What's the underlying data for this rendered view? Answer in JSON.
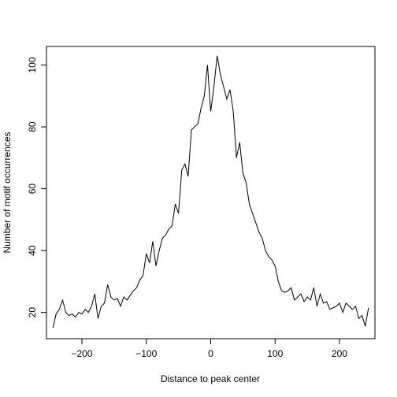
{
  "chart_data": {
    "type": "line",
    "title": "",
    "xlabel": "Distance to peak center",
    "ylabel": "Number of motif occurrences",
    "xlim": [
      -255,
      255
    ],
    "ylim": [
      11.5,
      106
    ],
    "x_ticks": [
      -200,
      -100,
      0,
      100,
      200
    ],
    "y_ticks": [
      20,
      40,
      60,
      80,
      100
    ],
    "x_tick_labels": [
      "−200",
      "−100",
      "0",
      "100",
      "200"
    ],
    "y_tick_labels": [
      "20",
      "40",
      "60",
      "80",
      "100"
    ],
    "grid": false,
    "legend": "none",
    "line_color": "#000000",
    "series": [
      {
        "x": [
          -245,
          -240,
          -235,
          -230,
          -225,
          -220,
          -215,
          -210,
          -205,
          -200,
          -195,
          -190,
          -185,
          -180,
          -175,
          -170,
          -165,
          -160,
          -155,
          -150,
          -145,
          -140,
          -135,
          -130,
          -125,
          -120,
          -115,
          -110,
          -105,
          -100,
          -95,
          -90,
          -85,
          -80,
          -75,
          -70,
          -65,
          -60,
          -55,
          -50,
          -45,
          -40,
          -35,
          -30,
          -25,
          -20,
          -15,
          -10,
          -5,
          0,
          5,
          10,
          15,
          20,
          25,
          30,
          35,
          40,
          45,
          50,
          55,
          60,
          65,
          70,
          75,
          80,
          85,
          90,
          95,
          100,
          105,
          110,
          115,
          120,
          125,
          130,
          135,
          140,
          145,
          150,
          155,
          160,
          165,
          170,
          175,
          180,
          185,
          190,
          195,
          200,
          205,
          210,
          215,
          220,
          225,
          230,
          235,
          240,
          245
        ],
        "y": [
          15,
          19.5,
          21,
          24,
          20,
          19,
          19.5,
          18.5,
          20,
          19.5,
          21,
          20,
          22,
          26,
          18,
          22,
          23,
          29,
          25,
          24,
          24.5,
          22,
          25,
          24,
          25.5,
          27,
          28,
          30.5,
          32,
          39,
          36,
          43,
          35,
          40,
          44,
          45,
          47,
          48,
          55,
          52,
          66,
          68,
          64,
          79,
          80,
          81,
          86,
          90,
          100,
          85,
          93,
          103,
          97,
          93,
          89,
          92,
          85,
          70,
          75,
          65,
          62,
          55,
          52,
          49,
          46,
          44,
          40,
          38,
          37,
          35,
          30,
          27,
          26.5,
          27,
          28,
          24,
          25,
          26,
          23.5,
          25,
          24,
          28,
          22,
          26,
          23,
          23.5,
          21,
          21.5,
          22,
          23,
          20,
          23,
          22,
          21,
          22,
          18,
          19,
          15.5,
          21.5
        ]
      }
    ]
  }
}
